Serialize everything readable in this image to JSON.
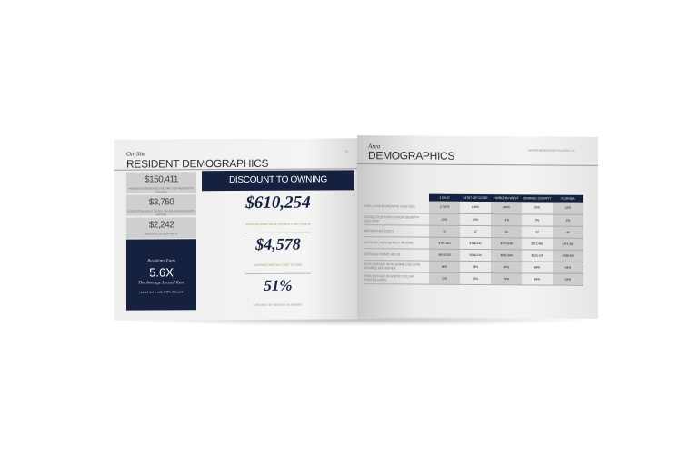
{
  "left_page": {
    "kicker": "On-Site",
    "title": "RESIDENT DEMOGRAPHICS",
    "page_number": "14",
    "stats": [
      {
        "value": "$150,411",
        "caption": "Average household income for residents on-site"
      },
      {
        "value": "$3,760",
        "caption": "Suggested rent based on 30% of residents income"
      },
      {
        "value": "$2,242",
        "caption": "Average leased rent"
      }
    ],
    "earn": {
      "kicker": "Residents Earn",
      "value": "5.6X",
      "subtitle": "The Average Leased Rent",
      "note": "Leased rent is only 17.8% of income"
    },
    "discount": {
      "header": "DISCOUNT TO OWNING",
      "items": [
        {
          "value": "$610,254",
          "caption": "Average home value within a 1 mile radius"
        },
        {
          "value": "$4,578",
          "caption": "Average monthly cost to own"
        },
        {
          "value": "51%",
          "caption": "Discount by renting vs owning"
        }
      ]
    }
  },
  "right_page": {
    "kicker": "Area",
    "title": "DEMOGRAPHICS",
    "running_head": "AVENIR WATERLEIGH VILLAGE E",
    "page_number": "15",
    "table": {
      "columns": [
        "1 Mile",
        "34787 Zip Code",
        "Horizon West",
        "Orange County",
        "Florida"
      ],
      "rows": [
        {
          "label": "Population Growth 2010-2021",
          "values": [
            "3,744%",
            "158%",
            "469%",
            "35%",
            "22%"
          ]
        },
        {
          "label": "Projected Population Growth 2021-2030",
          "values": [
            "24%",
            "37%",
            "12%",
            "3%",
            "2%"
          ]
        },
        {
          "label": "Median Age (2021)",
          "values": [
            "35",
            "37",
            "35",
            "37",
            "44"
          ]
        },
        {
          "label": "Average Household Income",
          "values": [
            "$187,183",
            "$166,543",
            "$177,640",
            "$117,402",
            "$111,382"
          ]
        },
        {
          "label": "Average Home Value",
          "values": [
            "$610,254",
            "$584,534",
            "$603,260",
            "$523,128",
            "$500,393"
          ]
        },
        {
          "label": "Percentage with some college degree or higher",
          "values": [
            "86%",
            "78%",
            "87%",
            "68%",
            "64%"
          ]
        },
        {
          "label": "Percentage in white collar professions",
          "values": [
            "72%",
            "72%",
            "75%",
            "64%",
            "63%"
          ]
        }
      ]
    }
  }
}
